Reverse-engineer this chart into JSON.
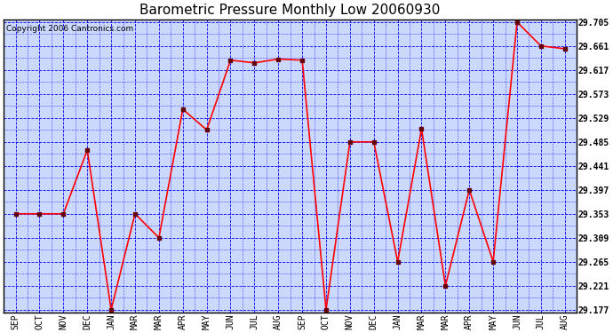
{
  "title": "Barometric Pressure Monthly Low 20060930",
  "copyright_text": "Copyright 2006 Cantronics.com",
  "x_labels": [
    "SEP",
    "OCT",
    "NOV",
    "DEC",
    "JAN",
    "MAR",
    "MAR",
    "APR",
    "MAY",
    "JUN",
    "JUL",
    "AUG",
    "SEP",
    "OCT",
    "NOV",
    "DEC",
    "JAN",
    "MAR",
    "MAR",
    "APR",
    "MAY",
    "JUN",
    "JUL",
    "AUG"
  ],
  "y_values": [
    29.353,
    29.353,
    29.353,
    29.47,
    29.177,
    29.353,
    29.309,
    29.545,
    29.507,
    29.635,
    29.63,
    29.637,
    29.635,
    29.177,
    29.485,
    29.485,
    29.265,
    29.509,
    29.221,
    29.397,
    29.265,
    29.705,
    29.661,
    29.656
  ],
  "line_color": "red",
  "marker_color": "#660000",
  "bg_color": "#ccd9ff",
  "grid_color": "blue",
  "y_min": 29.177,
  "y_max": 29.705,
  "y_ticks": [
    29.177,
    29.221,
    29.265,
    29.309,
    29.353,
    29.397,
    29.441,
    29.485,
    29.529,
    29.573,
    29.617,
    29.661,
    29.705
  ],
  "title_fontsize": 11,
  "copyright_fontsize": 6.5,
  "tick_fontsize": 7,
  "figwidth": 6.9,
  "figheight": 3.75,
  "dpi": 100
}
